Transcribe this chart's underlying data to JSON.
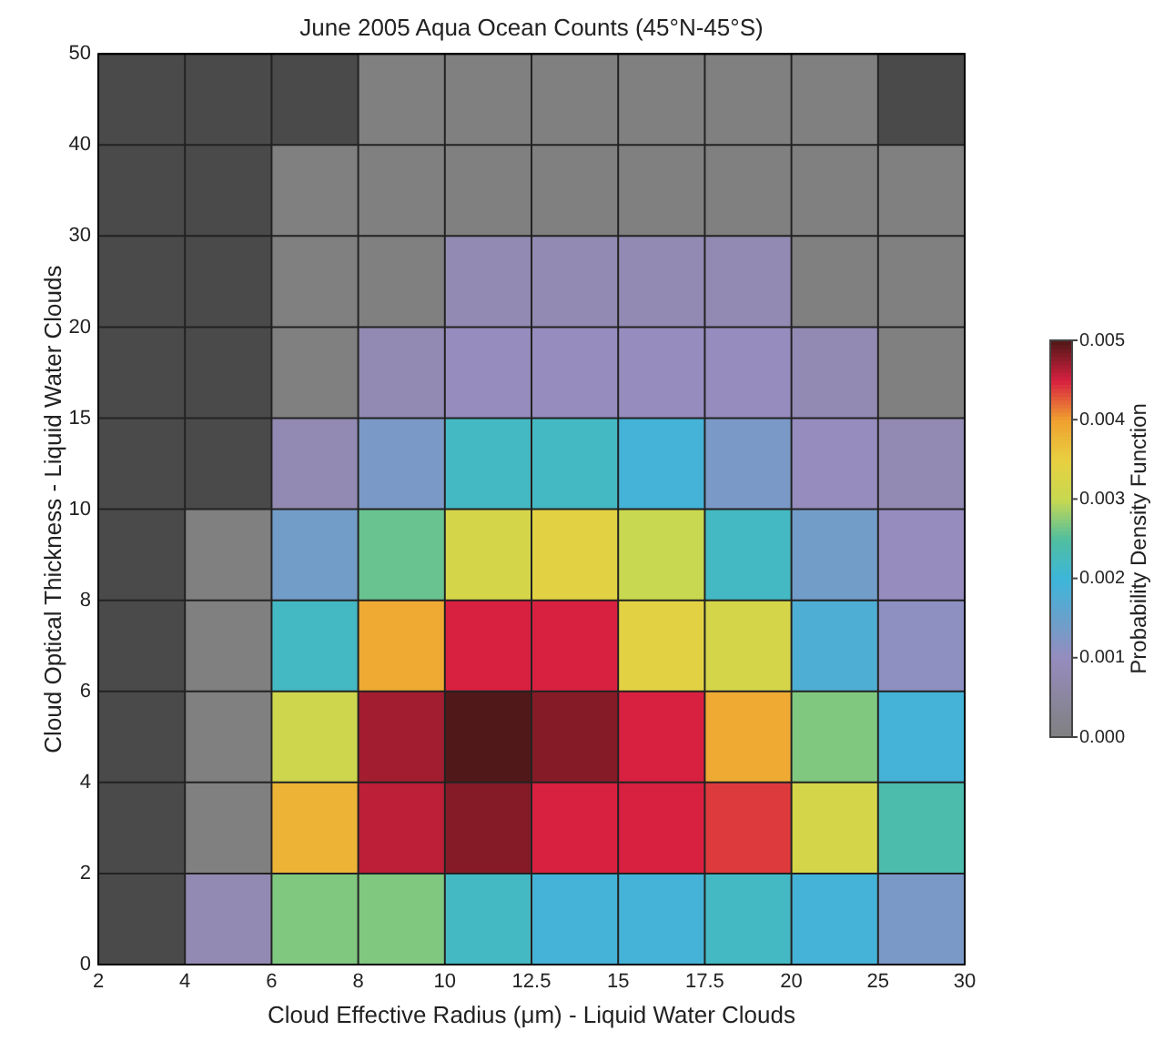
{
  "chart_data": {
    "type": "heatmap",
    "title": "June 2005 Aqua Ocean Counts (45°N-45°S)",
    "xlabel": "Cloud Effective Radius (μm) - Liquid Water Clouds",
    "ylabel": "Cloud Optical Thickness - Liquid Water Clouds",
    "clabel": "Probability Density Function",
    "categories": [
      null,
      null,
      null,
      null,
      null,
      null,
      null,
      null,
      null,
      null
    ],
    "y_categories": [
      null,
      null,
      null,
      null,
      null,
      null,
      null,
      null,
      null,
      null
    ],
    "annotations": [
      "2",
      "4",
      "6",
      "8",
      "10",
      "12.5",
      "15",
      "17.5",
      "20",
      "25",
      "30",
      "50",
      "40",
      "30",
      "20",
      "15",
      "10",
      "8",
      "6",
      "4",
      "2",
      "0"
    ],
    "clim": [
      0,
      0.005
    ],
    "cticks": [
      {
        "value": 0,
        "label": "0.000"
      },
      {
        "value": 0.001,
        "label": "0.001"
      },
      {
        "value": 0.002,
        "label": "0.002"
      },
      {
        "value": 0.003,
        "label": "0.003"
      },
      {
        "value": 0.004,
        "label": "0.004"
      },
      {
        "value": 0.005,
        "label": "0.005"
      }
    ],
    "grid": true,
    "cells": [
      [
        null,
        null,
        null,
        0,
        0,
        0,
        0,
        0,
        0,
        null
      ],
      [
        null,
        null,
        0,
        0,
        0,
        0,
        0,
        0,
        0,
        0
      ],
      [
        null,
        null,
        0,
        0,
        0.0008,
        0.0008,
        0.0008,
        0.0008,
        0,
        0
      ],
      [
        null,
        null,
        0,
        0.0008,
        0.001,
        0.001,
        0.001,
        0.001,
        0.0008,
        0
      ],
      [
        null,
        null,
        0.0008,
        0.0013,
        0.0022,
        0.0022,
        0.0019,
        0.0013,
        0.001,
        0.0008
      ],
      [
        null,
        0,
        0.0014,
        0.0026,
        0.0032,
        0.0034,
        0.003,
        0.0022,
        0.0014,
        0.001
      ],
      [
        null,
        0,
        0.0022,
        0.0039,
        0.0045,
        0.0045,
        0.0034,
        0.0032,
        0.0018,
        0.0011
      ],
      [
        null,
        0,
        0.0031,
        0.0047,
        0.005,
        0.0048,
        0.0045,
        0.0039,
        0.0027,
        0.0019
      ],
      [
        null,
        0,
        0.0038,
        0.0046,
        0.0048,
        0.0045,
        0.0045,
        0.0044,
        0.0032,
        0.0024
      ],
      [
        null,
        0.0008,
        0.0027,
        0.0027,
        0.0022,
        0.0019,
        0.0019,
        0.0022,
        0.0019,
        0.0013
      ]
    ]
  }
}
